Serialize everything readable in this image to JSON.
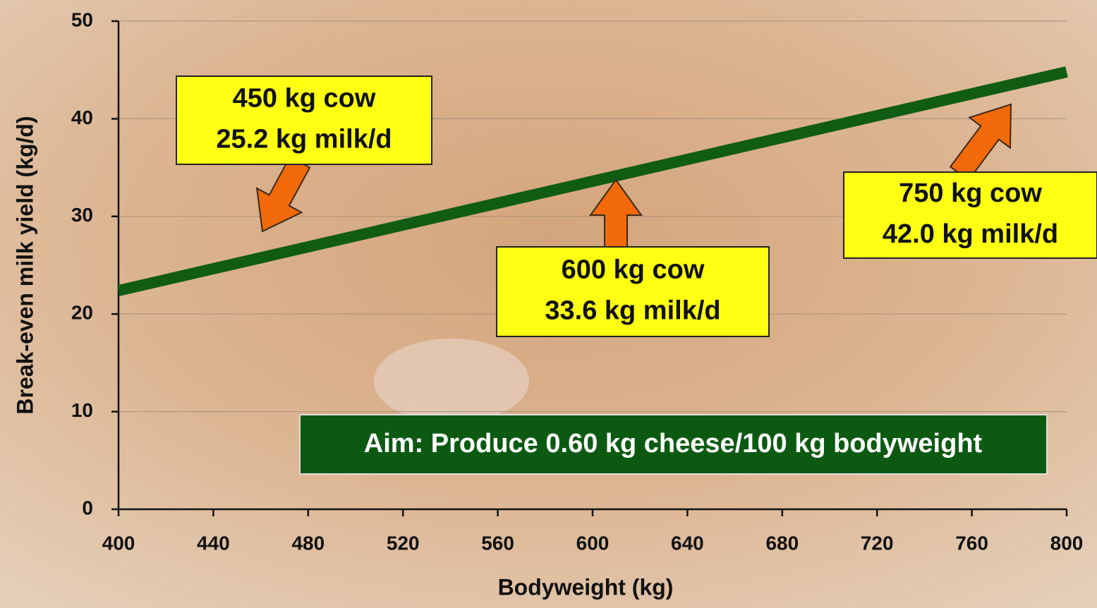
{
  "chart_data": {
    "type": "line",
    "xlabel": "Bodyweight (kg)",
    "ylabel": "Break-even milk yield (kg/d)",
    "x": [
      400,
      800
    ],
    "series": [
      {
        "color": "#0f5c12",
        "values": [
          22.4,
          44.8
        ]
      }
    ],
    "xlim": [
      400,
      800
    ],
    "xticks": [
      400,
      440,
      480,
      520,
      560,
      600,
      640,
      680,
      720,
      760,
      800
    ],
    "ylim": [
      0,
      50
    ],
    "yticks": [
      0,
      10,
      20,
      30,
      40,
      50
    ],
    "grid": true,
    "annotations": [
      {
        "lines": [
          "450 kg cow",
          "25.2 kg milk/d"
        ]
      },
      {
        "lines": [
          "600 kg cow",
          "33.6 kg milk/d"
        ]
      },
      {
        "lines": [
          "750 kg cow",
          "42.0 kg milk/d"
        ]
      }
    ],
    "aim": "Aim: Produce 0.60 kg cheese/100 kg bodyweight"
  }
}
